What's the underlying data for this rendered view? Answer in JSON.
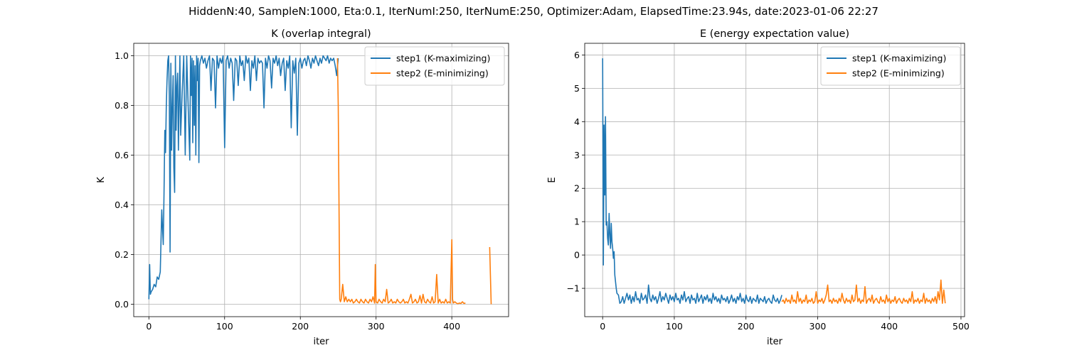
{
  "suptitle": "HiddenN:40, SampleN:1000, Eta:0.1, IterNumI:250, IterNumE:250, Optimizer:Adam, ElapsedTime:23.94s, date:2023-01-06  22:27",
  "colors": {
    "step1": "#1f77b4",
    "step2": "#ff7f0e"
  },
  "chart_data": [
    {
      "type": "line",
      "title": "K (overlap integral)",
      "xlabel": "iter",
      "ylabel": "K",
      "xlim": [
        -20,
        475
      ],
      "ylim": [
        -0.05,
        1.05
      ],
      "xticks": [
        0,
        100,
        200,
        300,
        400
      ],
      "yticks": [
        0.0,
        0.2,
        0.4,
        0.6,
        0.8,
        1.0
      ],
      "ytick_decimals": 1,
      "grid": true,
      "legend_position": "upper right",
      "series": [
        {
          "name": "step1 (K-maximizing)",
          "color": "#1f77b4",
          "x": [
            0,
            1,
            2,
            3,
            5,
            7,
            9,
            11,
            13,
            15,
            17,
            19,
            20,
            21,
            22,
            23,
            24,
            25,
            26,
            27,
            28,
            29,
            30,
            31,
            32,
            33,
            34,
            35,
            36,
            37,
            38,
            39,
            40,
            41,
            42,
            44,
            46,
            48,
            50,
            52,
            54,
            55,
            56,
            57,
            58,
            59,
            60,
            61,
            62,
            63,
            64,
            65,
            66,
            67,
            68,
            70,
            72,
            74,
            76,
            78,
            80,
            82,
            84,
            86,
            88,
            90,
            92,
            94,
            96,
            98,
            100,
            102,
            104,
            106,
            108,
            110,
            112,
            114,
            116,
            118,
            120,
            122,
            124,
            126,
            128,
            130,
            132,
            134,
            136,
            138,
            140,
            142,
            144,
            146,
            148,
            150,
            152,
            154,
            156,
            158,
            160,
            162,
            164,
            166,
            168,
            170,
            172,
            174,
            176,
            178,
            180,
            182,
            184,
            186,
            188,
            190,
            192,
            194,
            196,
            198,
            200,
            202,
            204,
            206,
            208,
            210,
            212,
            214,
            216,
            218,
            220,
            222,
            224,
            226,
            228,
            230,
            232,
            234,
            236,
            238,
            240,
            242,
            244,
            246,
            248,
            250
          ],
          "y": [
            0.02,
            0.16,
            0.04,
            0.05,
            0.06,
            0.08,
            0.07,
            0.11,
            0.1,
            0.13,
            0.38,
            0.24,
            0.45,
            0.7,
            0.61,
            0.8,
            0.9,
            0.98,
            1.0,
            0.84,
            0.21,
            0.97,
            0.62,
            0.79,
            0.92,
            0.55,
            0.45,
            1.0,
            0.7,
            0.88,
            0.93,
            0.62,
            0.82,
            1.0,
            0.68,
            0.85,
            1.0,
            0.6,
            1.0,
            0.78,
            0.58,
            1.0,
            0.84,
            0.99,
            0.65,
            0.98,
            0.72,
            0.96,
            0.6,
            1.0,
            0.9,
            0.99,
            0.57,
            0.96,
            0.98,
            1.0,
            0.97,
            0.99,
            0.95,
            0.98,
            1.0,
            0.86,
            0.99,
            0.98,
            0.79,
            1.0,
            0.95,
            0.99,
            0.97,
            1.0,
            0.63,
            0.98,
            1.0,
            0.95,
            0.99,
            0.97,
            0.82,
            0.99,
            0.98,
            0.88,
            1.0,
            0.96,
            0.98,
            0.9,
            1.0,
            0.97,
            0.99,
            0.86,
            0.98,
            0.95,
            1.0,
            0.9,
            0.99,
            0.97,
            0.98,
            0.97,
            0.79,
            0.99,
            0.95,
            1.0,
            0.98,
            0.87,
            0.99,
            0.97,
            1.0,
            0.96,
            0.99,
            0.92,
            0.97,
            0.99,
            0.86,
            0.98,
            0.95,
            1.0,
            0.71,
            0.98,
            0.93,
            0.99,
            0.68,
            0.97,
            0.99,
            0.95,
            0.98,
            0.99,
            0.96,
            1.0,
            0.98,
            0.95,
            0.99,
            0.97,
            1.0,
            0.98,
            0.96,
            0.99,
            0.97,
            1.0,
            0.99,
            0.98,
            1.0,
            0.97,
            0.99,
            0.98,
            0.99,
            0.96,
            0.92,
            0.99
          ]
        },
        {
          "name": "step2 (E-minimizing)",
          "color": "#ff7f0e",
          "x": [
            249,
            250,
            252,
            253,
            254,
            256,
            258,
            260,
            262,
            264,
            266,
            268,
            270,
            272,
            274,
            276,
            278,
            280,
            282,
            284,
            286,
            288,
            290,
            292,
            294,
            296,
            298,
            299,
            300,
            302,
            304,
            306,
            308,
            310,
            312,
            314,
            316,
            318,
            320,
            322,
            324,
            326,
            328,
            330,
            332,
            334,
            336,
            338,
            340,
            342,
            344,
            346,
            348,
            350,
            352,
            354,
            356,
            358,
            360,
            362,
            364,
            366,
            368,
            370,
            372,
            374,
            376,
            378,
            380,
            382,
            384,
            386,
            388,
            390,
            392,
            394,
            396,
            398,
            400,
            401,
            402,
            404,
            406,
            408,
            410,
            412,
            414,
            416,
            418
          ],
          "y": [
            0.99,
            0.8,
            0.02,
            0.01,
            0.02,
            0.08,
            0.01,
            0.03,
            0.01,
            0.02,
            0.01,
            0.02,
            0.005,
            0.01,
            0.02,
            0.01,
            0.005,
            0.02,
            0.01,
            0.005,
            0.02,
            0.01,
            0.005,
            0.02,
            0.01,
            0.03,
            0.005,
            0.16,
            0.01,
            0.005,
            0.02,
            0.01,
            0.005,
            0.02,
            0.01,
            0.06,
            0.005,
            0.01,
            0.02,
            0.005,
            0.01,
            0.005,
            0.02,
            0.01,
            0.005,
            0.01,
            0.02,
            0.005,
            0.01,
            0.005,
            0.02,
            0.04,
            0.005,
            0.01,
            0.02,
            0.005,
            0.01,
            0.035,
            0.005,
            0.04,
            0.01,
            0.005,
            0.02,
            0.01,
            0.005,
            0.03,
            0.005,
            0.01,
            0.12,
            0.005,
            0.02,
            0.005,
            0.01,
            0.005,
            0.02,
            0.005,
            0.01,
            0.005,
            0.26,
            0.02,
            0.005,
            0.01,
            0.005,
            0.002,
            0.005,
            0.003,
            0.01,
            0.003,
            0.005
          ]
        },
        {
          "name": "",
          "color": "#ff7f0e",
          "x": [
            450,
            451,
            452
          ],
          "y": [
            0.23,
            0.12,
            0.0
          ]
        }
      ]
    },
    {
      "type": "line",
      "title": "E (energy expectation value)",
      "xlabel": "iter",
      "ylabel": "E",
      "xlim": [
        -25,
        505
      ],
      "ylim": [
        -1.85,
        6.35
      ],
      "xticks": [
        0,
        100,
        200,
        300,
        400,
        500
      ],
      "yticks": [
        -1,
        0,
        1,
        2,
        3,
        4,
        5,
        6
      ],
      "ytick_decimals": 0,
      "grid": true,
      "legend_position": "upper right",
      "series": [
        {
          "name": "step1 (K-maximizing)",
          "color": "#1f77b4",
          "x": [
            0,
            1,
            2,
            3,
            4,
            5,
            6,
            7,
            8,
            9,
            10,
            11,
            12,
            13,
            14,
            15,
            16,
            17,
            18,
            19,
            20,
            22,
            24,
            26,
            28,
            30,
            32,
            34,
            36,
            38,
            40,
            42,
            44,
            46,
            48,
            50,
            52,
            54,
            56,
            58,
            60,
            62,
            64,
            66,
            68,
            70,
            72,
            74,
            76,
            78,
            80,
            82,
            84,
            86,
            88,
            90,
            92,
            94,
            96,
            98,
            100,
            102,
            104,
            106,
            108,
            110,
            112,
            114,
            116,
            118,
            120,
            122,
            124,
            126,
            128,
            130,
            132,
            134,
            136,
            138,
            140,
            142,
            144,
            146,
            148,
            150,
            152,
            154,
            156,
            158,
            160,
            162,
            164,
            166,
            168,
            170,
            172,
            174,
            176,
            178,
            180,
            182,
            184,
            186,
            188,
            190,
            192,
            194,
            196,
            198,
            200,
            202,
            204,
            206,
            208,
            210,
            212,
            214,
            216,
            218,
            220,
            222,
            224,
            226,
            228,
            230,
            232,
            234,
            236,
            238,
            240,
            242,
            244,
            246,
            248,
            250
          ],
          "y": [
            5.9,
            -0.3,
            3.9,
            1.8,
            4.15,
            0.9,
            1.0,
            0.5,
            0.3,
            1.25,
            0.6,
            0.2,
            0.95,
            0.4,
            0.2,
            -0.1,
            0.1,
            -0.6,
            -0.8,
            -1.0,
            -1.15,
            -1.2,
            -1.45,
            -1.4,
            -1.25,
            -1.45,
            -1.3,
            -1.15,
            -1.35,
            -1.2,
            -1.45,
            -1.25,
            -1.4,
            -1.1,
            -1.35,
            -1.3,
            -1.45,
            -1.15,
            -1.35,
            -1.3,
            -1.2,
            -1.45,
            -0.9,
            -1.3,
            -1.4,
            -1.2,
            -1.35,
            -1.25,
            -1.45,
            -1.3,
            -1.1,
            -1.4,
            -1.25,
            -1.35,
            -1.15,
            -1.3,
            -1.45,
            -1.2,
            -1.35,
            -1.25,
            -1.4,
            -1.15,
            -1.35,
            -1.3,
            -1.45,
            -1.2,
            -1.35,
            -1.1,
            -1.4,
            -1.3,
            -1.25,
            -1.45,
            -1.2,
            -1.35,
            -1.3,
            -1.45,
            -1.15,
            -1.4,
            -1.3,
            -1.2,
            -1.45,
            -1.25,
            -1.35,
            -1.2,
            -1.4,
            -1.3,
            -1.45,
            -1.15,
            -1.35,
            -1.25,
            -1.4,
            -1.3,
            -1.45,
            -1.2,
            -1.35,
            -1.3,
            -1.4,
            -1.25,
            -1.45,
            -1.35,
            -1.2,
            -1.4,
            -1.3,
            -1.45,
            -1.25,
            -1.35,
            -1.15,
            -1.4,
            -1.3,
            -1.45,
            -1.2,
            -1.35,
            -1.4,
            -1.25,
            -1.45,
            -1.3,
            -1.35,
            -1.4,
            -1.2,
            -1.45,
            -1.3,
            -1.35,
            -1.4,
            -1.25,
            -1.45,
            -1.35,
            -1.3,
            -1.4,
            -1.45,
            -1.2,
            -1.35,
            -1.4,
            -1.3,
            -1.45,
            -1.35,
            -1.2
          ]
        },
        {
          "name": "step2 (E-minimizing)",
          "color": "#ff7f0e",
          "x": [
            250,
            252,
            254,
            256,
            258,
            260,
            262,
            264,
            266,
            268,
            270,
            272,
            274,
            276,
            278,
            280,
            282,
            284,
            286,
            288,
            290,
            292,
            294,
            296,
            298,
            300,
            302,
            304,
            306,
            308,
            310,
            312,
            314,
            316,
            318,
            320,
            322,
            324,
            326,
            328,
            330,
            332,
            334,
            336,
            338,
            340,
            342,
            344,
            346,
            348,
            350,
            352,
            354,
            356,
            358,
            360,
            362,
            364,
            366,
            368,
            370,
            372,
            374,
            376,
            378,
            380,
            382,
            384,
            386,
            388,
            390,
            392,
            394,
            396,
            398,
            400,
            402,
            404,
            406,
            408,
            410,
            412,
            414,
            416,
            418,
            420,
            422,
            424,
            426,
            428,
            430,
            432,
            434,
            436,
            438,
            440,
            442,
            444,
            446,
            448,
            450,
            452,
            454,
            456,
            458,
            460,
            462,
            464,
            466,
            468,
            470,
            472,
            474,
            476,
            478
          ],
          "y": [
            -1.4,
            -1.35,
            -1.45,
            -1.3,
            -1.4,
            -1.35,
            -1.45,
            -1.2,
            -1.4,
            -1.35,
            -1.45,
            -1.1,
            -1.4,
            -1.3,
            -1.45,
            -1.35,
            -1.4,
            -1.2,
            -1.45,
            -1.35,
            -1.4,
            -1.3,
            -1.45,
            -1.4,
            -1.1,
            -1.45,
            -1.35,
            -1.4,
            -1.3,
            -1.45,
            -1.35,
            -1.2,
            -0.9,
            -1.4,
            -1.35,
            -1.45,
            -1.3,
            -1.4,
            -1.35,
            -1.45,
            -1.3,
            -1.4,
            -1.15,
            -1.35,
            -1.45,
            -1.3,
            -1.4,
            -1.35,
            -1.45,
            -1.2,
            -1.4,
            -1.35,
            -0.9,
            -1.4,
            -1.3,
            -1.45,
            -1.35,
            -1.4,
            -0.95,
            -1.45,
            -1.35,
            -1.3,
            -1.4,
            -1.2,
            -1.45,
            -1.35,
            -1.3,
            -1.4,
            -1.45,
            -1.25,
            -1.4,
            -1.35,
            -1.45,
            -1.2,
            -1.4,
            -1.3,
            -1.45,
            -1.35,
            -1.4,
            -1.25,
            -1.45,
            -1.35,
            -1.3,
            -1.4,
            -1.45,
            -1.3,
            -1.4,
            -1.35,
            -1.45,
            -1.3,
            -1.4,
            -1.1,
            -1.45,
            -1.35,
            -1.4,
            -1.3,
            -1.45,
            -1.35,
            -1.4,
            -1.15,
            -1.45,
            -1.3,
            -1.4,
            -1.35,
            -1.45,
            -1.3,
            -1.4,
            -1.25,
            -1.45,
            -1.1,
            -1.35,
            -0.75,
            -1.45,
            -1.05,
            -1.45
          ]
        }
      ]
    }
  ]
}
